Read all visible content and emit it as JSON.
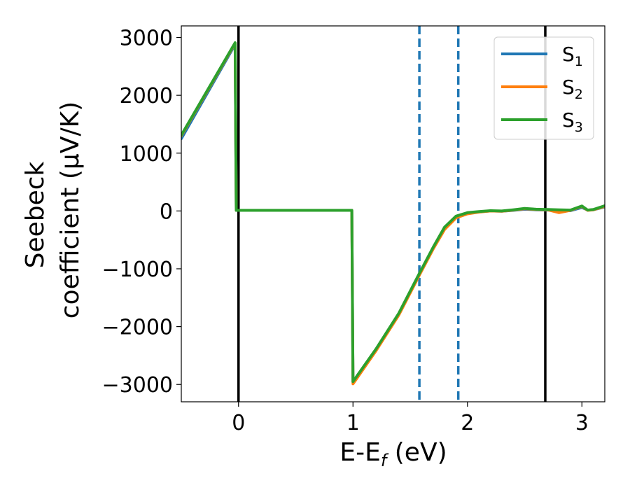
{
  "chart_data": {
    "type": "line",
    "xlabel": "E-E",
    "xlabel_sub": "f",
    "xlabel_unit": " (eV)",
    "ylabel_line1": "Seebeck",
    "ylabel_line2": "coefficient  (μV/K)",
    "xlim": [
      -0.5,
      3.2
    ],
    "ylim": [
      -3300,
      3200
    ],
    "x_ticks": [
      0,
      1,
      2,
      3
    ],
    "x_tick_labels": [
      "0",
      "1",
      "2",
      "3"
    ],
    "y_ticks": [
      -3000,
      -2000,
      -1000,
      0,
      1000,
      2000,
      3000
    ],
    "y_tick_labels": [
      "−3000",
      "−2000",
      "−1000",
      "0",
      "1000",
      "2000",
      "3000"
    ],
    "grid": false,
    "legend_position": "top-right",
    "vlines": [
      {
        "x": 0,
        "style": "solid",
        "color": "#000000"
      },
      {
        "x": 2.68,
        "style": "solid",
        "color": "#000000"
      },
      {
        "x": 1.58,
        "style": "dashed",
        "color": "#1f77b4"
      },
      {
        "x": 1.92,
        "style": "dashed",
        "color": "#1f77b4"
      }
    ],
    "series": [
      {
        "name": "S",
        "sub": "1",
        "color": "#1f77b4",
        "points": [
          [
            -0.5,
            1250
          ],
          [
            -0.03,
            2880
          ],
          [
            -0.02,
            10
          ],
          [
            0.3,
            10
          ],
          [
            0.6,
            10
          ],
          [
            0.8,
            10
          ],
          [
            0.99,
            10
          ],
          [
            1.0,
            -2960
          ],
          [
            1.2,
            -2400
          ],
          [
            1.4,
            -1790
          ],
          [
            1.58,
            -1100
          ],
          [
            1.7,
            -650
          ],
          [
            1.8,
            -300
          ],
          [
            1.9,
            -100
          ],
          [
            2.0,
            -40
          ],
          [
            2.1,
            -15
          ],
          [
            2.2,
            0
          ],
          [
            2.3,
            -5
          ],
          [
            2.4,
            10
          ],
          [
            2.5,
            30
          ],
          [
            2.6,
            20
          ],
          [
            2.7,
            15
          ],
          [
            2.8,
            10
          ],
          [
            2.9,
            5
          ],
          [
            3.0,
            60
          ],
          [
            3.05,
            15
          ],
          [
            3.1,
            20
          ],
          [
            3.2,
            70
          ]
        ]
      },
      {
        "name": "S",
        "sub": "2",
        "color": "#ff7f0e",
        "points": [
          [
            -0.5,
            1300
          ],
          [
            -0.03,
            2900
          ],
          [
            -0.02,
            10
          ],
          [
            0.3,
            10
          ],
          [
            0.6,
            10
          ],
          [
            0.8,
            10
          ],
          [
            0.99,
            10
          ],
          [
            1.0,
            -2990
          ],
          [
            1.2,
            -2420
          ],
          [
            1.4,
            -1800
          ],
          [
            1.58,
            -1110
          ],
          [
            1.7,
            -660
          ],
          [
            1.8,
            -320
          ],
          [
            1.9,
            -120
          ],
          [
            2.0,
            -50
          ],
          [
            2.1,
            -20
          ],
          [
            2.2,
            0
          ],
          [
            2.3,
            -5
          ],
          [
            2.4,
            15
          ],
          [
            2.5,
            40
          ],
          [
            2.6,
            25
          ],
          [
            2.7,
            20
          ],
          [
            2.8,
            -30
          ],
          [
            2.9,
            10
          ],
          [
            3.0,
            80
          ],
          [
            3.05,
            10
          ],
          [
            3.1,
            20
          ],
          [
            3.2,
            80
          ]
        ]
      },
      {
        "name": "S",
        "sub": "3",
        "color": "#2ca02c",
        "points": [
          [
            -0.5,
            1310
          ],
          [
            -0.03,
            2910
          ],
          [
            -0.02,
            10
          ],
          [
            0.3,
            10
          ],
          [
            0.6,
            10
          ],
          [
            0.8,
            10
          ],
          [
            0.99,
            10
          ],
          [
            1.0,
            -2950
          ],
          [
            1.2,
            -2390
          ],
          [
            1.4,
            -1770
          ],
          [
            1.58,
            -1080
          ],
          [
            1.7,
            -630
          ],
          [
            1.8,
            -280
          ],
          [
            1.9,
            -90
          ],
          [
            2.0,
            -30
          ],
          [
            2.1,
            -10
          ],
          [
            2.2,
            5
          ],
          [
            2.3,
            0
          ],
          [
            2.4,
            20
          ],
          [
            2.5,
            45
          ],
          [
            2.6,
            30
          ],
          [
            2.7,
            25
          ],
          [
            2.8,
            20
          ],
          [
            2.9,
            15
          ],
          [
            3.0,
            85
          ],
          [
            3.05,
            15
          ],
          [
            3.1,
            25
          ],
          [
            3.2,
            90
          ]
        ]
      }
    ]
  }
}
